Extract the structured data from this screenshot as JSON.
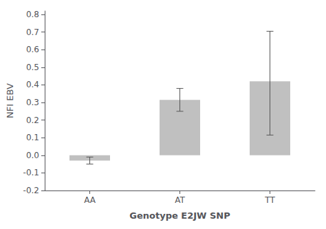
{
  "chart_data": {
    "type": "bar",
    "categories": [
      "AA",
      "AT",
      "TT"
    ],
    "values": [
      -0.03,
      0.315,
      0.42
    ],
    "errors_upper": [
      0.02,
      0.065,
      0.285
    ],
    "errors_lower": [
      0.02,
      0.065,
      0.305
    ],
    "color": "#c0c0c0",
    "xlabel": "Genotype E2JW SNP",
    "ylabel": "NFI EBV",
    "ylim": [
      -0.2,
      0.82
    ],
    "yticks": [
      -0.2,
      -0.1,
      {
        "value": 0.0,
        "label": "0.0"
      },
      0.1,
      0.2,
      0.3,
      0.4,
      0.5,
      0.6,
      0.7,
      0.8
    ],
    "grid": false
  }
}
